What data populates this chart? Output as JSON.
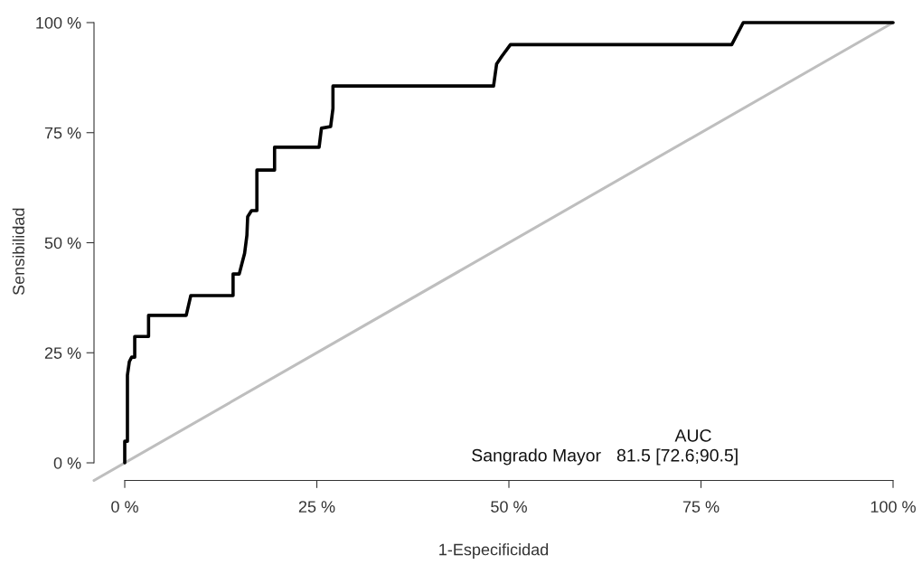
{
  "chart_data": {
    "type": "line",
    "xlabel": "1-Especificidad",
    "ylabel": "Sensibilidad",
    "xlim": [
      -4,
      100
    ],
    "ylim": [
      -4,
      100
    ],
    "xticks": [
      {
        "value": 0,
        "label": "0 %"
      },
      {
        "value": 25,
        "label": "25 %"
      },
      {
        "value": 50,
        "label": "50 %"
      },
      {
        "value": 75,
        "label": "75 %"
      },
      {
        "value": 100,
        "label": "100 %"
      }
    ],
    "yticks": [
      {
        "value": 0,
        "label": "0 %"
      },
      {
        "value": 25,
        "label": "25 %"
      },
      {
        "value": 50,
        "label": "50 %"
      },
      {
        "value": 75,
        "label": "75 %"
      },
      {
        "value": 100,
        "label": "100 %"
      }
    ],
    "grid": false,
    "legend": false,
    "marker": "none",
    "series": [
      {
        "color": "#bebebe",
        "x": [
          -4,
          100
        ],
        "values": [
          -4,
          100
        ]
      },
      {
        "color": "#000000",
        "x": [
          0,
          0,
          0.35,
          0.35,
          0.6,
          0.9,
          1.3,
          1.3,
          3.1,
          3.1,
          8.0,
          8.6,
          14.1,
          14.1,
          14.9,
          15.3,
          15.6,
          15.9,
          16,
          16.5,
          17.2,
          17.2,
          19.5,
          19.5,
          25.3,
          25.6,
          26.8,
          27.1,
          27.1,
          48,
          48.4,
          49.1,
          50.2,
          79,
          80.5,
          100
        ],
        "values": [
          0,
          4.9,
          4.9,
          19.9,
          23,
          24,
          24,
          28.7,
          28.7,
          33.5,
          33.5,
          38,
          38,
          42.9,
          42.9,
          45.6,
          47.6,
          51.7,
          55.9,
          57.3,
          57.3,
          66.5,
          66.5,
          71.7,
          71.7,
          76,
          76.4,
          80.5,
          85.6,
          85.6,
          90.6,
          92.4,
          95,
          95,
          100,
          100
        ]
      }
    ],
    "annotations": [
      "AUC",
      "Sangrado Mayor",
      "81.5 [72.6;90.5]"
    ]
  }
}
